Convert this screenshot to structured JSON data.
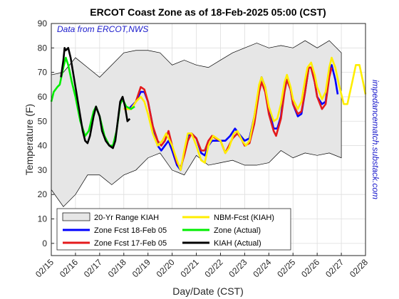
{
  "chart_data": {
    "type": "line",
    "title": "ERCOT Coast Zone as of 18-Feb-2025 05:00 (CST)",
    "x_label": "Day/Date (CST)",
    "y_label": "Temperature (F)",
    "annotations": [
      "Data from ERCOT,NWS",
      "impedancematch.substack.com"
    ],
    "xlim": [
      0,
      13
    ],
    "ylim": [
      -5,
      90
    ],
    "xticks": [
      {
        "value": 0,
        "label": "02/15"
      },
      {
        "value": 1,
        "label": "02/16"
      },
      {
        "value": 2,
        "label": "02/17"
      },
      {
        "value": 3,
        "label": "02/18"
      },
      {
        "value": 4,
        "label": "02/19"
      },
      {
        "value": 5,
        "label": "02/20"
      },
      {
        "value": 6,
        "label": "02/21"
      },
      {
        "value": 7,
        "label": "02/22"
      },
      {
        "value": 8,
        "label": "02/23"
      },
      {
        "value": 9,
        "label": "02/24"
      },
      {
        "value": 10,
        "label": "02/25"
      },
      {
        "value": 11,
        "label": "02/26"
      },
      {
        "value": 12,
        "label": "02/27"
      },
      {
        "value": 13,
        "label": "02/28"
      }
    ],
    "yticks": [
      0,
      10,
      20,
      30,
      40,
      50,
      60,
      70,
      80,
      90
    ],
    "grid": true,
    "legend": "lower left",
    "series": [
      {
        "name": "20-Yr Range KIAH",
        "kind": "range",
        "color": "#e6e6e6",
        "x": [
          0,
          0.5,
          1,
          1.5,
          2,
          2.5,
          3,
          3.5,
          4,
          4.5,
          5,
          5.5,
          6,
          6.5,
          7,
          7.5,
          8,
          8.5,
          9,
          9.5,
          10,
          10.5,
          11,
          11.5,
          12
        ],
        "high": [
          69,
          70,
          76,
          72,
          68,
          73,
          78,
          79,
          79,
          78,
          73,
          75,
          73,
          72,
          75,
          78,
          80,
          82,
          80,
          81,
          80,
          83,
          80,
          83,
          78
        ],
        "low": [
          22,
          15,
          20,
          28,
          28,
          24,
          28,
          30,
          35,
          37,
          30,
          28,
          36,
          32,
          33,
          34,
          32,
          32,
          33,
          38,
          35,
          37,
          36,
          37,
          35
        ]
      },
      {
        "name": "Zone Fcst 18-Feb 05",
        "color": "#0000ff",
        "x": [
          3.2,
          3.5,
          3.7,
          3.85,
          4.0,
          4.2,
          4.4,
          4.55,
          4.7,
          4.85,
          5.0,
          5.2,
          5.35,
          5.5,
          5.65,
          5.8,
          6.0,
          6.2,
          6.35,
          6.5,
          6.65,
          6.8,
          7.0,
          7.2,
          7.4,
          7.6,
          7.75,
          8.0,
          8.2,
          8.4,
          8.6,
          8.7,
          8.85,
          9.0,
          9.2,
          9.35,
          9.5,
          9.65,
          9.75,
          9.9,
          10.0,
          10.2,
          10.35,
          10.5,
          10.65,
          10.75,
          10.9,
          11.0,
          11.2,
          11.35,
          11.5,
          11.6,
          11.75,
          11.85
        ],
        "values": [
          55,
          58,
          62,
          62,
          58,
          48,
          40,
          38,
          40,
          42,
          38,
          32,
          30,
          37,
          44,
          45,
          43,
          37,
          36,
          40,
          42,
          42,
          42,
          42,
          44,
          47,
          45,
          42,
          43,
          52,
          64,
          68,
          64,
          55,
          47,
          47,
          52,
          64,
          67,
          63,
          57,
          52,
          53,
          62,
          72,
          72,
          66,
          60,
          57,
          58,
          70,
          73,
          67,
          61
        ]
      },
      {
        "name": "Zone Fcst 17-Feb 05",
        "color": "#e41a1c",
        "x": [
          3.0,
          3.3,
          3.5,
          3.7,
          3.85,
          4.0,
          4.2,
          4.4,
          4.55,
          4.7,
          4.85,
          5.0,
          5.2,
          5.35,
          5.5,
          5.65,
          5.8,
          6.0,
          6.2,
          6.35,
          6.5,
          6.65,
          6.8,
          7.0,
          7.2,
          7.35,
          7.5,
          7.7,
          7.85,
          8.0,
          8.2,
          8.4,
          8.6,
          8.7,
          8.85,
          9.0,
          9.2,
          9.3,
          9.5,
          9.65,
          9.75,
          9.9,
          10.0,
          10.2,
          10.35,
          10.5,
          10.65,
          10.75,
          10.9,
          11.0,
          11.2,
          11.35,
          11.5,
          11.6
        ],
        "values": [
          55,
          55,
          58,
          64,
          63,
          58,
          48,
          42,
          40,
          42,
          46,
          40,
          33,
          31,
          36,
          42,
          45,
          43,
          38,
          38,
          42,
          44,
          43,
          42,
          37,
          40,
          43,
          45,
          43,
          40,
          41,
          49,
          62,
          66,
          62,
          53,
          46,
          44,
          51,
          62,
          67,
          63,
          57,
          53,
          54,
          62,
          72,
          72,
          66,
          60,
          55,
          57,
          68,
          72
        ]
      },
      {
        "name": "NBM-Fcst (KIAH)",
        "color": "#ffee00",
        "x": [
          3.0,
          3.3,
          3.5,
          3.7,
          3.85,
          4.0,
          4.2,
          4.4,
          4.6,
          4.75,
          5.0,
          5.2,
          5.35,
          5.5,
          5.65,
          5.8,
          6.0,
          6.2,
          6.35,
          6.5,
          6.7,
          6.85,
          7.0,
          7.2,
          7.35,
          7.55,
          7.7,
          7.9,
          8.05,
          8.2,
          8.4,
          8.6,
          8.7,
          8.85,
          9.0,
          9.2,
          9.35,
          9.5,
          9.65,
          9.75,
          9.9,
          10.0,
          10.2,
          10.35,
          10.5,
          10.6,
          10.75,
          10.9,
          11.0,
          11.2,
          11.35,
          11.5,
          11.6,
          11.75,
          11.9,
          12.1,
          12.25,
          12.45,
          12.6,
          12.75,
          12.9,
          13.0
        ],
        "values": [
          55,
          55,
          58,
          60,
          58,
          53,
          45,
          40,
          42,
          45,
          40,
          34,
          30,
          38,
          45,
          45,
          40,
          34,
          33,
          40,
          44,
          43,
          42,
          37,
          39,
          45,
          46,
          42,
          40,
          42,
          52,
          65,
          68,
          64,
          56,
          50,
          51,
          57,
          66,
          69,
          64,
          59,
          55,
          58,
          67,
          72,
          74,
          69,
          64,
          59,
          62,
          72,
          76,
          72,
          65,
          57,
          57,
          66,
          73,
          73,
          66,
          61
        ]
      },
      {
        "name": "Zone (Actual)",
        "color": "#00ee00",
        "x": [
          0,
          0.1,
          0.25,
          0.35,
          0.5,
          0.6,
          0.7,
          0.85,
          1.0,
          1.2,
          1.4,
          1.55,
          1.75,
          1.85,
          2.0,
          2.2,
          2.4,
          2.55,
          2.7,
          2.85,
          2.95,
          3.1,
          3.3,
          3.45
        ],
        "values": [
          58,
          62,
          64,
          65,
          72,
          76,
          73,
          66,
          60,
          50,
          44,
          46,
          54,
          56,
          52,
          44,
          40,
          40,
          46,
          57,
          59,
          56,
          55,
          56
        ]
      },
      {
        "name": "KIAH (Actual)",
        "color": "#000000",
        "x": [
          0.4,
          0.5,
          0.55,
          0.6,
          0.7,
          0.8,
          0.9,
          1.0,
          1.1,
          1.2,
          1.3,
          1.4,
          1.5,
          1.6,
          1.75,
          1.85,
          2.0,
          2.1,
          2.25,
          2.4,
          2.55,
          2.65,
          2.75,
          2.85,
          2.95,
          3.05,
          3.15,
          3.25
        ],
        "values": [
          68,
          75,
          80,
          79,
          80,
          76,
          70,
          64,
          58,
          52,
          46,
          42,
          41,
          44,
          52,
          56,
          52,
          46,
          42,
          40,
          39,
          42,
          50,
          58,
          60,
          56,
          50,
          51
        ]
      }
    ]
  }
}
